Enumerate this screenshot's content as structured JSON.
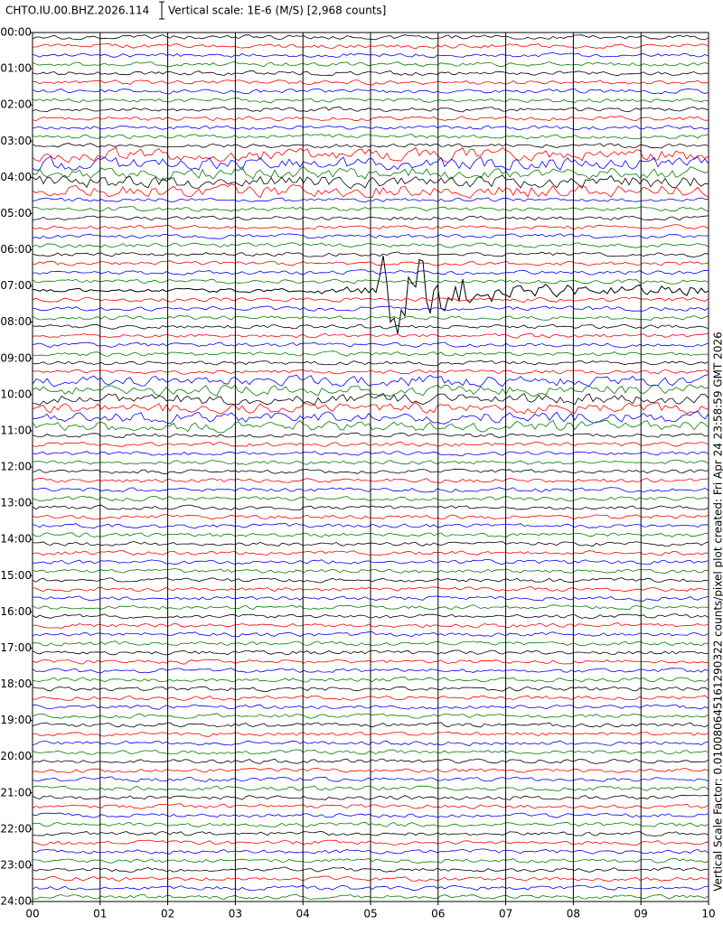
{
  "chart_data": {
    "type": "helicorder",
    "title": "CHTO.IU.00.BHZ.2026.114",
    "subtitle": "Vertical scale: 1E-6 (M/S) [2,968 counts]",
    "side_note": "Vertical Scale Factor: 0.010080645161290322 counts/pixel plot created: Fri Apr 24 23:58:59 GMT 2026",
    "xlim": [
      0,
      10
    ],
    "ylim": [
      0,
      24
    ],
    "xticks": [
      {
        "value": 0,
        "label": "00"
      },
      {
        "value": 1,
        "label": "01"
      },
      {
        "value": 2,
        "label": "02"
      },
      {
        "value": 3,
        "label": "03"
      },
      {
        "value": 4,
        "label": "04"
      },
      {
        "value": 5,
        "label": "05"
      },
      {
        "value": 6,
        "label": "06"
      },
      {
        "value": 7,
        "label": "07"
      },
      {
        "value": 8,
        "label": "08"
      },
      {
        "value": 9,
        "label": "09"
      },
      {
        "value": 10,
        "label": "10"
      }
    ],
    "yticks": [
      {
        "value": 0,
        "label": "00:00"
      },
      {
        "value": 1,
        "label": "01:00"
      },
      {
        "value": 2,
        "label": "02:00"
      },
      {
        "value": 3,
        "label": "03:00"
      },
      {
        "value": 4,
        "label": "04:00"
      },
      {
        "value": 5,
        "label": "05:00"
      },
      {
        "value": 6,
        "label": "06:00"
      },
      {
        "value": 7,
        "label": "07:00"
      },
      {
        "value": 8,
        "label": "08:00"
      },
      {
        "value": 9,
        "label": "09:00"
      },
      {
        "value": 10,
        "label": "10:00"
      },
      {
        "value": 11,
        "label": "11:00"
      },
      {
        "value": 12,
        "label": "12:00"
      },
      {
        "value": 13,
        "label": "13:00"
      },
      {
        "value": 14,
        "label": "14:00"
      },
      {
        "value": 15,
        "label": "15:00"
      },
      {
        "value": 16,
        "label": "16:00"
      },
      {
        "value": 17,
        "label": "17:00"
      },
      {
        "value": 18,
        "label": "18:00"
      },
      {
        "value": 19,
        "label": "19:00"
      },
      {
        "value": 20,
        "label": "20:00"
      },
      {
        "value": 21,
        "label": "21:00"
      },
      {
        "value": 22,
        "label": "22:00"
      },
      {
        "value": 23,
        "label": "23:00"
      },
      {
        "value": 24,
        "label": "24:00"
      }
    ],
    "grid": true,
    "trace_colors": [
      "#000000",
      "#ff0000",
      "#0000ff",
      "#008000"
    ]
  }
}
